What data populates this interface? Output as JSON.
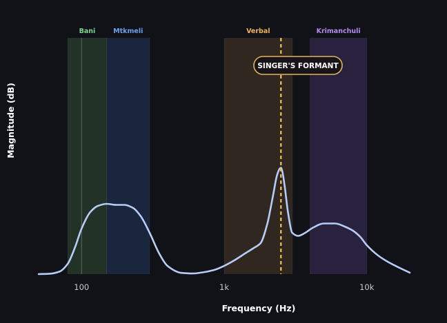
{
  "chart_data": {
    "type": "line",
    "xlabel": "Frequency (Hz)",
    "ylabel": "Magnitude (dB)",
    "xscale": "log",
    "xlim": [
      50,
      20000
    ],
    "x_ticks": [
      {
        "value": 100,
        "label": "100"
      },
      {
        "value": 1000,
        "label": "1k"
      },
      {
        "value": 10000,
        "label": "10k"
      }
    ],
    "grid": false,
    "legend": "none",
    "bands": [
      {
        "name": "Bani",
        "x_min": 80,
        "x_max": 150,
        "color": "#7fd58a",
        "fill": "#243528"
      },
      {
        "name": "Mtkmeli",
        "x_min": 150,
        "x_max": 300,
        "color": "#6fa0ea",
        "fill": "#1b2740"
      },
      {
        "name": "Verbal",
        "x_min": 1000,
        "x_max": 3000,
        "color": "#f0b45c",
        "fill": "#332a21"
      },
      {
        "name": "Krimanchuli",
        "x_min": 4000,
        "x_max": 10000,
        "color": "#b48af0",
        "fill": "#2b2440"
      }
    ],
    "reference_line": {
      "x": 100,
      "color": "#5e6a5c"
    },
    "annotation": {
      "text": "SINGER'S FORMANT",
      "x": 2500,
      "line_color": "#f2c25a",
      "border_color": "#e6b35a"
    },
    "series": [
      {
        "color": "#b7cdf7",
        "x": [
          50,
          60,
          70,
          80,
          90,
          100,
          115,
          130,
          150,
          175,
          200,
          230,
          260,
          300,
          350,
          400,
          500,
          600,
          700,
          850,
          1000,
          1200,
          1400,
          1600,
          1800,
          2000,
          2200,
          2350,
          2450,
          2500,
          2550,
          2650,
          2800,
          3000,
          3300,
          3700,
          4200,
          5000,
          6000,
          7000,
          8000,
          9000,
          10000,
          12000,
          14000,
          17000,
          20000
        ],
        "y": [
          0,
          0.2,
          1.2,
          5,
          13,
          22,
          30,
          33,
          34,
          33.5,
          33.5,
          32,
          28,
          20,
          10,
          4,
          0.6,
          0.3,
          0.8,
          2,
          4,
          7,
          10,
          12.5,
          15,
          24,
          38,
          48,
          51,
          51.5,
          50,
          43,
          30,
          20,
          18.5,
          20,
          22.5,
          24.5,
          24.5,
          23,
          21,
          18,
          14,
          9,
          6,
          3,
          0.7
        ]
      }
    ]
  }
}
